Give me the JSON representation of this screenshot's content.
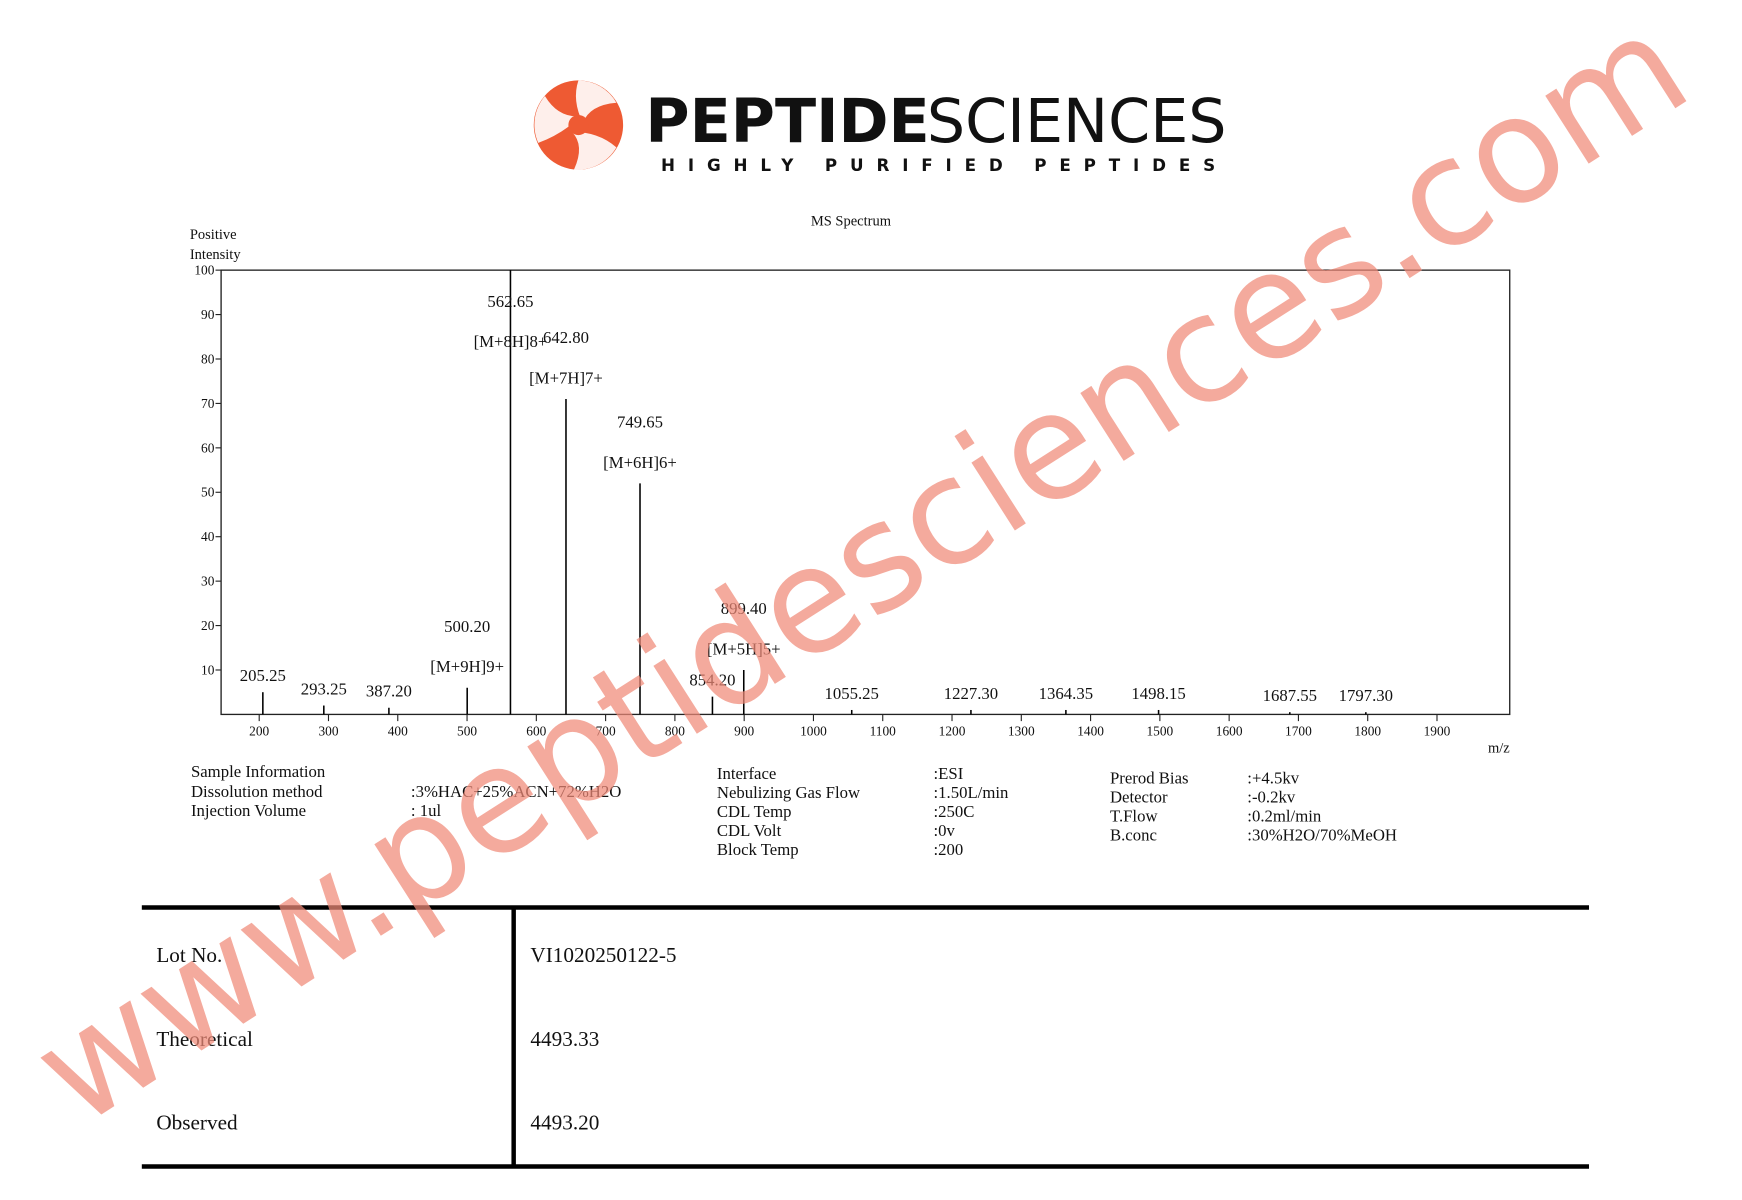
{
  "header": {
    "brand": [
      "PEPTIDE",
      "SCIENCES"
    ],
    "tagline": "HIGHLY PURIFIED PEPTIDES"
  },
  "chart_data": {
    "type": "bar",
    "title": "MS Spectrum",
    "y_label": [
      "Positive",
      "Intensity"
    ],
    "x_label": "m/z",
    "x": [
      205.25,
      293.25,
      387.2,
      500.2,
      562.65,
      642.8,
      749.65,
      854.2,
      899.4,
      1055.25,
      1227.3,
      1364.35,
      1498.15,
      1687.55,
      1797.3
    ],
    "x_labels": [
      "205.25",
      "293.25",
      "387.20",
      "500.20",
      "562.65",
      "642.80",
      "749.65",
      "854.20",
      "899.40",
      "1055.25",
      "1227.30",
      "1364.35",
      "1498.15",
      "1687.55",
      "1797.30"
    ],
    "values": [
      5,
      2,
      1.5,
      6,
      100,
      71,
      52,
      4,
      10,
      1,
      1,
      1,
      1,
      0.5,
      0.5
    ],
    "ion_labels": [
      null,
      null,
      null,
      "[M+9H]9+",
      "[M+8H]8+",
      "[M+7H]7+",
      "[M+6H]6+",
      null,
      "[M+5H]5+",
      null,
      null,
      null,
      null,
      null,
      null
    ],
    "color": "#000000",
    "xlim": [
      145,
      2005
    ],
    "xticks": [
      200,
      300,
      400,
      500,
      600,
      700,
      800,
      900,
      1000,
      1100,
      1200,
      1300,
      1400,
      1500,
      1600,
      1700,
      1800,
      1900
    ],
    "ylim": [
      0,
      100
    ],
    "yticks": [
      10,
      20,
      30,
      40,
      50,
      60,
      70,
      80,
      90,
      100
    ]
  },
  "sample_info": {
    "title": "Sample Information",
    "columns": [
      [
        [
          "Dissolution method",
          ":3%HAC+25%ACN+72%H2O"
        ],
        [
          "Injection Volume",
          ": 1ul"
        ]
      ],
      [
        [
          "Interface",
          ":ESI"
        ],
        [
          "Nebulizing Gas Flow",
          ":1.50L/min"
        ],
        [
          "CDL Temp",
          ":250C"
        ],
        [
          "CDL Volt",
          ":0v"
        ],
        [
          "Block Temp",
          ":200"
        ]
      ],
      [
        [
          "Prerod Bias",
          ":+4.5kv"
        ],
        [
          "Detector",
          ":-0.2kv"
        ],
        [
          "T.Flow",
          ":0.2ml/min"
        ],
        [
          "B.conc",
          ":30%H2O/70%MeOH"
        ]
      ]
    ]
  },
  "table": {
    "rows": [
      [
        "Lot No.",
        "VI1020250122-5"
      ],
      [
        "Theoretical",
        "4493.33"
      ],
      [
        "Observed",
        "4493.20"
      ]
    ]
  },
  "watermark": "www.peptidesciences.com"
}
